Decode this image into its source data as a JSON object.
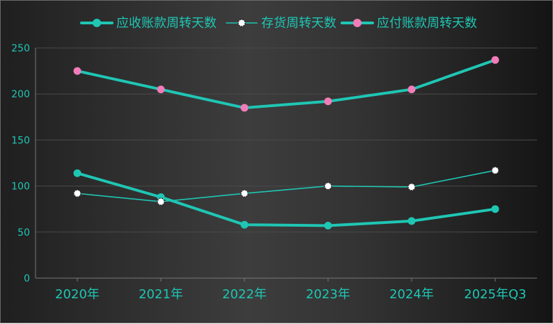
{
  "colors": {
    "accent": "#1fc6b4",
    "payable_marker": "#f27cb9",
    "inventory_marker_fill": "#ffffff",
    "grid": "#4a4a4a",
    "axis_line": "#777777",
    "label": "#1fc6b4"
  },
  "chart_data": {
    "type": "line",
    "categories": [
      "2020年",
      "2021年",
      "2022年",
      "2023年",
      "2024年",
      "2025年Q3"
    ],
    "series": [
      {
        "name": "应收账款周转天数",
        "values": [
          114,
          88,
          58,
          57,
          62,
          75
        ],
        "color": "#1fc6b4",
        "marker_color": "#1fc6b4",
        "line_style": "thick"
      },
      {
        "name": "存货周转天数",
        "values": [
          92,
          83,
          92,
          100,
          99,
          117
        ],
        "color": "#1fc6b4",
        "marker_color": "#ffffff",
        "line_style": "thin"
      },
      {
        "name": "应付账款周转天数",
        "values": [
          225,
          205,
          185,
          192,
          205,
          237
        ],
        "color": "#1fc6b4",
        "marker_color": "#f27cb9",
        "line_style": "thick"
      }
    ],
    "y_axis": {
      "min": 0,
      "max": 250,
      "ticks": [
        "0",
        "50",
        "100",
        "150",
        "200",
        "250"
      ],
      "tick_values": [
        0,
        50,
        100,
        150,
        200,
        250
      ]
    },
    "grid": true,
    "legend_position": "top-center"
  }
}
